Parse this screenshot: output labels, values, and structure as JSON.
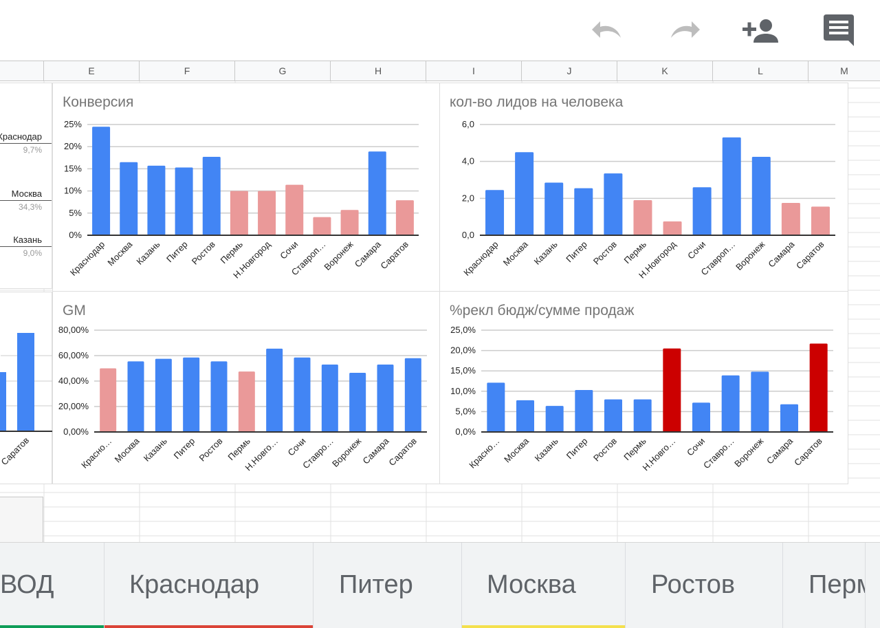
{
  "toolbar": {
    "undo_icon": "undo-icon",
    "redo_icon": "redo-icon",
    "share_icon": "add-person-icon",
    "comments_icon": "comment-icon",
    "icon_color": "#5f6368",
    "icon_disabled_color": "#bdbdbd"
  },
  "columns": [
    "E",
    "F",
    "G",
    "H",
    "I",
    "J",
    "K",
    "L",
    "M"
  ],
  "left_partial": {
    "pie_labels": [
      {
        "name": "Краснодар",
        "pct": "9,7%"
      },
      {
        "name": "Москва",
        "pct": "34,3%"
      },
      {
        "name": "Казань",
        "pct": "9,0%"
      }
    ],
    "bar_label": "Саратов"
  },
  "charts": {
    "conv": {
      "title": "Конверсия"
    },
    "leads": {
      "title": "кол-во лидов на человека"
    },
    "gm": {
      "title": "GM"
    },
    "ad": {
      "title": "%рекл бюдж/сумме продаж"
    }
  },
  "tabs": [
    {
      "label": "ВОД",
      "color": "#0f9d58"
    },
    {
      "label": "Краснодар",
      "color": "#db4437"
    },
    {
      "label": "Питер",
      "color": "#f1f3f4"
    },
    {
      "label": "Москва",
      "color": "#f4e04d"
    },
    {
      "label": "Ростов",
      "color": "#f1f3f4"
    },
    {
      "label": "Перм",
      "color": "#f1f3f4"
    }
  ],
  "colors": {
    "blue": "#4285f4",
    "pink": "#ea9999",
    "red": "#cc0000",
    "gridline": "#cccccc",
    "axis": "#333333"
  },
  "chart_data": [
    {
      "id": "conv",
      "type": "bar",
      "title": "Конверсия",
      "categories": [
        "Краснодар",
        "Москва",
        "Казань",
        "Питер",
        "Ростов",
        "Пермь",
        "Н.Новгород",
        "Сочи",
        "Ставроп…",
        "Воронеж",
        "Самара",
        "Саратов"
      ],
      "values": [
        24.5,
        16.5,
        15.7,
        15.3,
        17.7,
        10.0,
        10.0,
        11.4,
        4.1,
        5.7,
        18.9,
        7.9
      ],
      "bar_colors": [
        "#4285f4",
        "#4285f4",
        "#4285f4",
        "#4285f4",
        "#4285f4",
        "#ea9999",
        "#ea9999",
        "#ea9999",
        "#ea9999",
        "#ea9999",
        "#4285f4",
        "#ea9999"
      ],
      "ylim": [
        0,
        25
      ],
      "yticks": [
        {
          "v": 0,
          "label": "0%"
        },
        {
          "v": 5,
          "label": "5%"
        },
        {
          "v": 10,
          "label": "10%"
        },
        {
          "v": 15,
          "label": "15%"
        },
        {
          "v": 20,
          "label": "20%"
        },
        {
          "v": 25,
          "label": "25%"
        }
      ],
      "grid": true,
      "xlabel": "",
      "ylabel": ""
    },
    {
      "id": "leads",
      "type": "bar",
      "title": "кол-во лидов на человека",
      "categories": [
        "Краснодар",
        "Москва",
        "Казань",
        "Питер",
        "Ростов",
        "Пермь",
        "Н.Новгород",
        "Сочи",
        "Ставроп…",
        "Воронеж",
        "Самара",
        "Саратов"
      ],
      "values": [
        2.45,
        4.5,
        2.85,
        2.55,
        3.35,
        1.9,
        0.75,
        2.6,
        5.3,
        4.25,
        1.75,
        1.55
      ],
      "bar_colors": [
        "#4285f4",
        "#4285f4",
        "#4285f4",
        "#4285f4",
        "#4285f4",
        "#ea9999",
        "#ea9999",
        "#4285f4",
        "#4285f4",
        "#4285f4",
        "#ea9999",
        "#ea9999"
      ],
      "ylim": [
        0,
        6
      ],
      "yticks": [
        {
          "v": 0,
          "label": "0,0"
        },
        {
          "v": 2,
          "label": "2,0"
        },
        {
          "v": 4,
          "label": "4,0"
        },
        {
          "v": 6,
          "label": "6,0"
        }
      ],
      "grid": true,
      "xlabel": "",
      "ylabel": ""
    },
    {
      "id": "gm",
      "type": "bar",
      "title": "GM",
      "categories": [
        "Красно…",
        "Москва",
        "Казань",
        "Питер",
        "Ростов",
        "Пермь",
        "Н.Новго…",
        "Сочи",
        "Ставро…",
        "Воронеж",
        "Самара",
        "Саратов"
      ],
      "values": [
        50,
        55.5,
        57.5,
        58.5,
        55.5,
        47.5,
        65.5,
        58.5,
        53,
        46.5,
        53,
        58
      ],
      "bar_colors": [
        "#ea9999",
        "#4285f4",
        "#4285f4",
        "#4285f4",
        "#4285f4",
        "#ea9999",
        "#4285f4",
        "#4285f4",
        "#4285f4",
        "#4285f4",
        "#4285f4",
        "#4285f4"
      ],
      "ylim": [
        0,
        80
      ],
      "yticks": [
        {
          "v": 0,
          "label": "0,00%"
        },
        {
          "v": 20,
          "label": "20,00%"
        },
        {
          "v": 40,
          "label": "40,00%"
        },
        {
          "v": 60,
          "label": "60,00%"
        },
        {
          "v": 80,
          "label": "80,00%"
        }
      ],
      "grid": true,
      "xlabel": "",
      "ylabel": ""
    },
    {
      "id": "ad",
      "type": "bar",
      "title": "%рекл бюдж/сумме продаж",
      "categories": [
        "Красно…",
        "Москва",
        "Казань",
        "Питер",
        "Ростов",
        "Пермь",
        "Н.Новго…",
        "Сочи",
        "Ставро…",
        "Воронеж",
        "Самара",
        "Саратов"
      ],
      "values": [
        12.1,
        7.8,
        6.4,
        10.3,
        8.0,
        8.0,
        20.5,
        7.2,
        13.9,
        14.8,
        6.8,
        21.7
      ],
      "bar_colors": [
        "#4285f4",
        "#4285f4",
        "#4285f4",
        "#4285f4",
        "#4285f4",
        "#4285f4",
        "#cc0000",
        "#4285f4",
        "#4285f4",
        "#4285f4",
        "#4285f4",
        "#cc0000"
      ],
      "ylim": [
        0,
        25
      ],
      "yticks": [
        {
          "v": 0,
          "label": "0,0%"
        },
        {
          "v": 5,
          "label": "5,0%"
        },
        {
          "v": 10,
          "label": "10,0%"
        },
        {
          "v": 15,
          "label": "15,0%"
        },
        {
          "v": 20,
          "label": "20,0%"
        },
        {
          "v": 25,
          "label": "25,0%"
        }
      ],
      "grid": true,
      "xlabel": "",
      "ylabel": ""
    }
  ]
}
